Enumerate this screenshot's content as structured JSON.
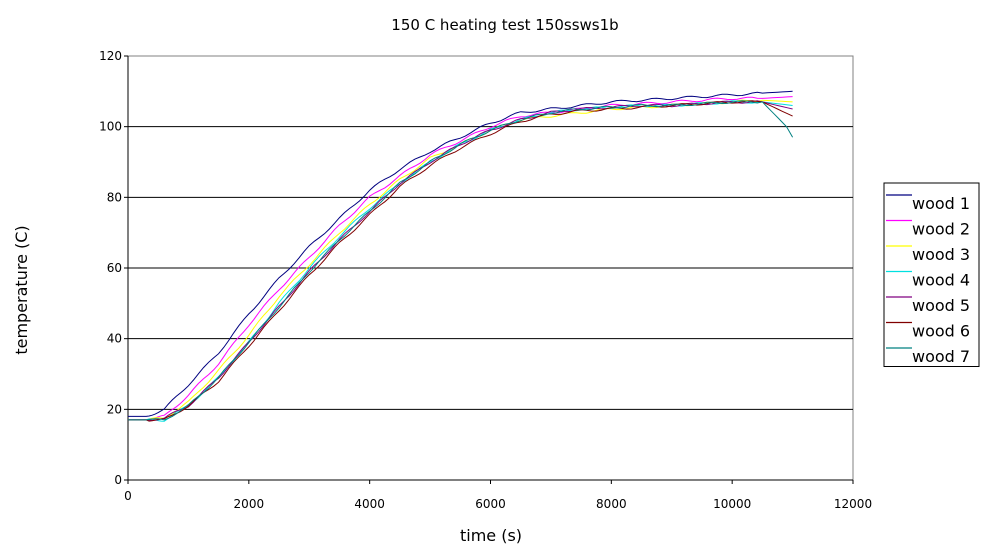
{
  "chart_data": {
    "type": "line",
    "title": "150 C heating test 150ssws1b",
    "xlabel": "time (s)",
    "ylabel": "temperature (C)",
    "xlim": [
      0,
      12000
    ],
    "ylim": [
      0,
      120
    ],
    "xticks": [
      0,
      2000,
      4000,
      6000,
      8000,
      10000,
      12000
    ],
    "yticks": [
      0,
      20,
      40,
      60,
      80,
      100,
      120
    ],
    "grid": "horizontal",
    "legend_position": "right",
    "series": [
      {
        "name": "wood 1",
        "color": "#000080",
        "x": [
          0,
          300,
          600,
          1000,
          1500,
          2000,
          2500,
          3000,
          3500,
          4000,
          4500,
          5000,
          5500,
          6000,
          6500,
          7000,
          7500,
          8000,
          8500,
          9000,
          9500,
          10000,
          10500,
          11000
        ],
        "y": [
          18,
          18,
          20,
          27,
          36,
          47,
          57,
          66,
          74,
          82,
          88,
          93,
          97,
          101,
          104,
          105,
          106,
          107,
          107.5,
          108,
          108.5,
          109,
          109.5,
          110
        ]
      },
      {
        "name": "wood 2",
        "color": "#ff00ff",
        "x": [
          0,
          300,
          600,
          1000,
          1500,
          2000,
          2500,
          3000,
          3500,
          4000,
          4500,
          5000,
          5500,
          6000,
          6500,
          7000,
          7500,
          8000,
          8500,
          9000,
          9500,
          10000,
          10500,
          11000
        ],
        "y": [
          17,
          17,
          18,
          24,
          33,
          44,
          54,
          63,
          72,
          80,
          86,
          92,
          96,
          100,
          103,
          104,
          105,
          106,
          106.5,
          107,
          107.5,
          108,
          108,
          108.5
        ]
      },
      {
        "name": "wood 3",
        "color": "#ffff00",
        "x": [
          0,
          300,
          600,
          1000,
          1500,
          2000,
          2500,
          3000,
          3500,
          4000,
          4500,
          5000,
          5500,
          6000,
          6500,
          7000,
          7500,
          8000,
          8500,
          9000,
          9500,
          10000,
          10500,
          11000
        ],
        "y": [
          17,
          17,
          17.5,
          22,
          31,
          41,
          52,
          61,
          70,
          78,
          85,
          91,
          95,
          99,
          102,
          103,
          104,
          105,
          105.5,
          106,
          106.5,
          107,
          107.5,
          107
        ]
      },
      {
        "name": "wood 4",
        "color": "#00e0e0",
        "x": [
          0,
          300,
          600,
          1000,
          1500,
          2000,
          2500,
          3000,
          3500,
          4000,
          4500,
          5000,
          5500,
          6000,
          6500,
          7000,
          7500,
          8000,
          8500,
          9000,
          9500,
          10000,
          10500,
          11000
        ],
        "y": [
          17,
          17,
          17,
          21,
          29,
          39,
          50,
          60,
          69,
          77,
          84,
          90,
          95,
          99,
          102,
          104,
          105,
          105.5,
          106,
          106,
          106.5,
          107,
          107,
          106
        ]
      },
      {
        "name": "wood 5",
        "color": "#800080",
        "x": [
          0,
          300,
          600,
          1000,
          1500,
          2000,
          2500,
          3000,
          3500,
          4000,
          4500,
          5000,
          5500,
          6000,
          6500,
          7000,
          7500,
          8000,
          8500,
          9000,
          9500,
          10000,
          10500,
          11000
        ],
        "y": [
          17,
          17,
          17.5,
          21,
          29,
          39,
          49,
          59,
          68,
          76,
          84,
          90,
          95,
          99,
          102,
          104,
          105,
          105.5,
          106,
          106,
          106.5,
          107,
          107,
          105
        ]
      },
      {
        "name": "wood 6",
        "color": "#800000",
        "x": [
          0,
          300,
          600,
          1000,
          1500,
          2000,
          2500,
          3000,
          3500,
          4000,
          4500,
          5000,
          5500,
          6000,
          6500,
          7000,
          7500,
          8000,
          8500,
          9000,
          9500,
          10000,
          10500,
          11000
        ],
        "y": [
          17,
          17,
          17,
          21,
          28,
          38,
          48,
          58,
          67,
          75,
          83,
          89,
          94,
          98,
          101.5,
          103.5,
          104.5,
          105,
          105.5,
          106,
          106.5,
          107,
          107,
          103
        ]
      },
      {
        "name": "wood 7",
        "color": "#008080",
        "x": [
          0,
          300,
          600,
          1000,
          1500,
          2000,
          2500,
          3000,
          3500,
          4000,
          4500,
          5000,
          5500,
          6000,
          6500,
          7000,
          7500,
          8000,
          8500,
          9000,
          9500,
          10000,
          10500,
          10900,
          11000
        ],
        "y": [
          17,
          17,
          17,
          21,
          29,
          39,
          49,
          59,
          68,
          76,
          84,
          90,
          95,
          99,
          102,
          104,
          105,
          105.5,
          106,
          106,
          106.5,
          107,
          107,
          100,
          97
        ]
      }
    ]
  }
}
